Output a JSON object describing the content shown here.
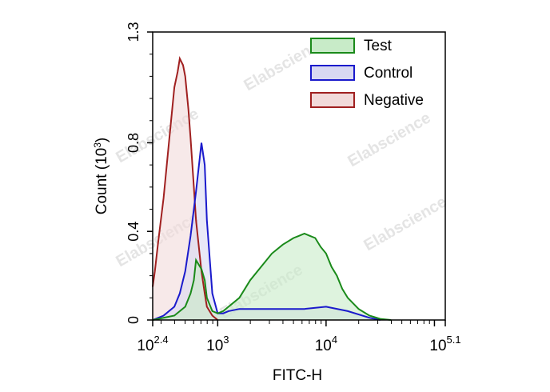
{
  "watermark": "Elabscience",
  "chart_data": {
    "type": "area",
    "xlabel": "FITC-H",
    "ylabel": "Count  (10",
    "ylabel_exp": "3",
    "ylabel_close": ")",
    "x_scale": "log10",
    "xlim": [
      2.4,
      5.1
    ],
    "ylim": [
      0,
      1.3
    ],
    "x_ticks": [
      {
        "pos": 2.4,
        "base": "10",
        "exp": "2.4"
      },
      {
        "pos": 3.0,
        "base": "10",
        "exp": "3"
      },
      {
        "pos": 4.0,
        "base": "10",
        "exp": "4"
      },
      {
        "pos": 5.1,
        "base": "10",
        "exp": "5.1"
      }
    ],
    "y_ticks": [
      {
        "value": 0,
        "label": "0"
      },
      {
        "value": 0.4,
        "label": "0.4"
      },
      {
        "value": 0.8,
        "label": "0.8"
      },
      {
        "value": 1.3,
        "label": "1.3"
      }
    ],
    "grid": false,
    "legend_position": "top-right",
    "series": [
      {
        "name": "Test",
        "stroke": "#1a8a1a",
        "fill": "#c8ebc8",
        "x": [
          2.4,
          2.6,
          2.7,
          2.75,
          2.78,
          2.8,
          2.85,
          2.88,
          2.9,
          2.95,
          3.0,
          3.05,
          3.1,
          3.2,
          3.3,
          3.4,
          3.5,
          3.6,
          3.7,
          3.75,
          3.8,
          3.85,
          3.9,
          3.95,
          4.0,
          4.05,
          4.1,
          4.15,
          4.2,
          4.3,
          4.4,
          4.5,
          4.6
        ],
        "y": [
          0,
          0.02,
          0.06,
          0.12,
          0.18,
          0.27,
          0.23,
          0.18,
          0.1,
          0.04,
          0.03,
          0.04,
          0.06,
          0.1,
          0.18,
          0.24,
          0.3,
          0.34,
          0.37,
          0.38,
          0.39,
          0.38,
          0.37,
          0.33,
          0.3,
          0.24,
          0.2,
          0.14,
          0.1,
          0.05,
          0.02,
          0.005,
          0
        ]
      },
      {
        "name": "Control",
        "stroke": "#1a1acc",
        "fill": "#d8d8f2",
        "x": [
          2.4,
          2.5,
          2.6,
          2.65,
          2.7,
          2.75,
          2.8,
          2.85,
          2.88,
          2.9,
          2.95,
          3.0,
          3.05,
          3.1,
          3.2,
          3.4,
          3.6,
          3.8,
          4.0,
          4.2,
          4.4,
          4.5
        ],
        "y": [
          0,
          0.02,
          0.06,
          0.12,
          0.22,
          0.38,
          0.58,
          0.8,
          0.7,
          0.45,
          0.12,
          0.03,
          0.03,
          0.04,
          0.05,
          0.05,
          0.05,
          0.05,
          0.06,
          0.04,
          0.01,
          0
        ]
      },
      {
        "name": "Negative",
        "stroke": "#a02020",
        "fill": "#f2dada",
        "x": [
          2.4,
          2.42,
          2.45,
          2.5,
          2.55,
          2.6,
          2.63,
          2.65,
          2.68,
          2.7,
          2.73,
          2.75,
          2.78,
          2.8,
          2.85,
          2.88,
          2.9,
          2.95,
          3.0
        ],
        "y": [
          0.15,
          0.22,
          0.35,
          0.55,
          0.8,
          1.05,
          1.12,
          1.18,
          1.15,
          1.1,
          0.95,
          0.82,
          0.6,
          0.45,
          0.22,
          0.12,
          0.06,
          0.02,
          0
        ]
      }
    ]
  }
}
